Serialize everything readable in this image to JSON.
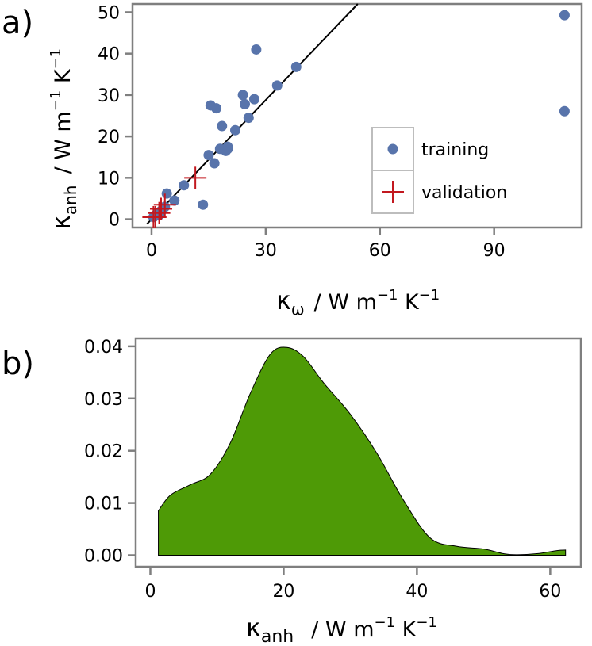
{
  "colors": {
    "training": "#5874ab",
    "validation": "#c2181f",
    "density_fill": "#4e9a06",
    "frame": "#7f7f7f",
    "fit_line": "#000000"
  },
  "chart_data": [
    {
      "panel_label": "a)",
      "type": "scatter",
      "xlabel": {
        "symbol": "κ",
        "subscript": "ω",
        "unit": "/ W m",
        "unit_exp": "−1",
        "unit_k": " K",
        "unit_k_exp": "−1"
      },
      "ylabel": {
        "symbol": "κ",
        "subscript": "anh",
        "unit": "/ W m",
        "unit_exp": "−1",
        "unit_k": " K",
        "unit_k_exp": "−1"
      },
      "xlim": [
        -5,
        113
      ],
      "ylim": [
        -2,
        52
      ],
      "xticks": [
        0,
        30,
        60,
        90
      ],
      "yticks": [
        0,
        10,
        20,
        30,
        40,
        50
      ],
      "fit_line": {
        "slope": 0.96,
        "intercept": 0
      },
      "legend_position": "bottom-right",
      "series": [
        {
          "name": "training",
          "marker": "circle",
          "x": [
            0.5,
            1,
            1.5,
            2,
            2.5,
            3,
            3.5,
            4,
            6,
            8.5,
            13.5,
            15,
            15.5,
            16.5,
            17,
            18,
            18.5,
            19.5,
            20,
            20,
            22,
            24,
            24.5,
            25.5,
            27,
            27.5,
            33,
            38,
            108.5,
            108.5
          ],
          "y": [
            0.5,
            1,
            1.5,
            1,
            2,
            2.5,
            3,
            6.2,
            4.5,
            8.2,
            3.5,
            15.5,
            27.5,
            13.5,
            26.8,
            17,
            22.5,
            16.5,
            17.5,
            17,
            21.5,
            30,
            27.8,
            24.5,
            29,
            41,
            32.3,
            36.8,
            49.3,
            26.1
          ]
        },
        {
          "name": "validation",
          "marker": "plus",
          "x": [
            0.5,
            1,
            2,
            2.5,
            3.5,
            11.5
          ],
          "y": [
            0.5,
            0.5,
            1.5,
            2.5,
            3.5,
            10
          ]
        }
      ]
    },
    {
      "panel_label": "b)",
      "type": "area",
      "xlabel": {
        "symbol": "κ",
        "subscript": "anh",
        "unit": "/ W m",
        "unit_exp": "−1",
        "unit_k": " K",
        "unit_k_exp": "−1"
      },
      "ylabel": "",
      "xlim": [
        -2.2,
        64.6
      ],
      "ylim": [
        -0.0022,
        0.0415
      ],
      "xticks": [
        0,
        20,
        40,
        60
      ],
      "yticks": [
        0.0,
        0.01,
        0.02,
        0.03,
        0.04
      ],
      "ytick_labels": [
        "0.00",
        "0.01",
        "0.02",
        "0.03",
        "0.04"
      ],
      "x": [
        1.2,
        3,
        6,
        9,
        12,
        15,
        18,
        20.5,
        23,
        26,
        30,
        34,
        38,
        42,
        46,
        50,
        53,
        55,
        58,
        61,
        62.3
      ],
      "y": [
        0.0085,
        0.0115,
        0.0135,
        0.0155,
        0.0215,
        0.031,
        0.0385,
        0.0398,
        0.038,
        0.033,
        0.027,
        0.0195,
        0.0105,
        0.0033,
        0.0017,
        0.0012,
        0.0003,
        0.0001,
        0.0003,
        0.0009,
        0.001
      ]
    }
  ]
}
